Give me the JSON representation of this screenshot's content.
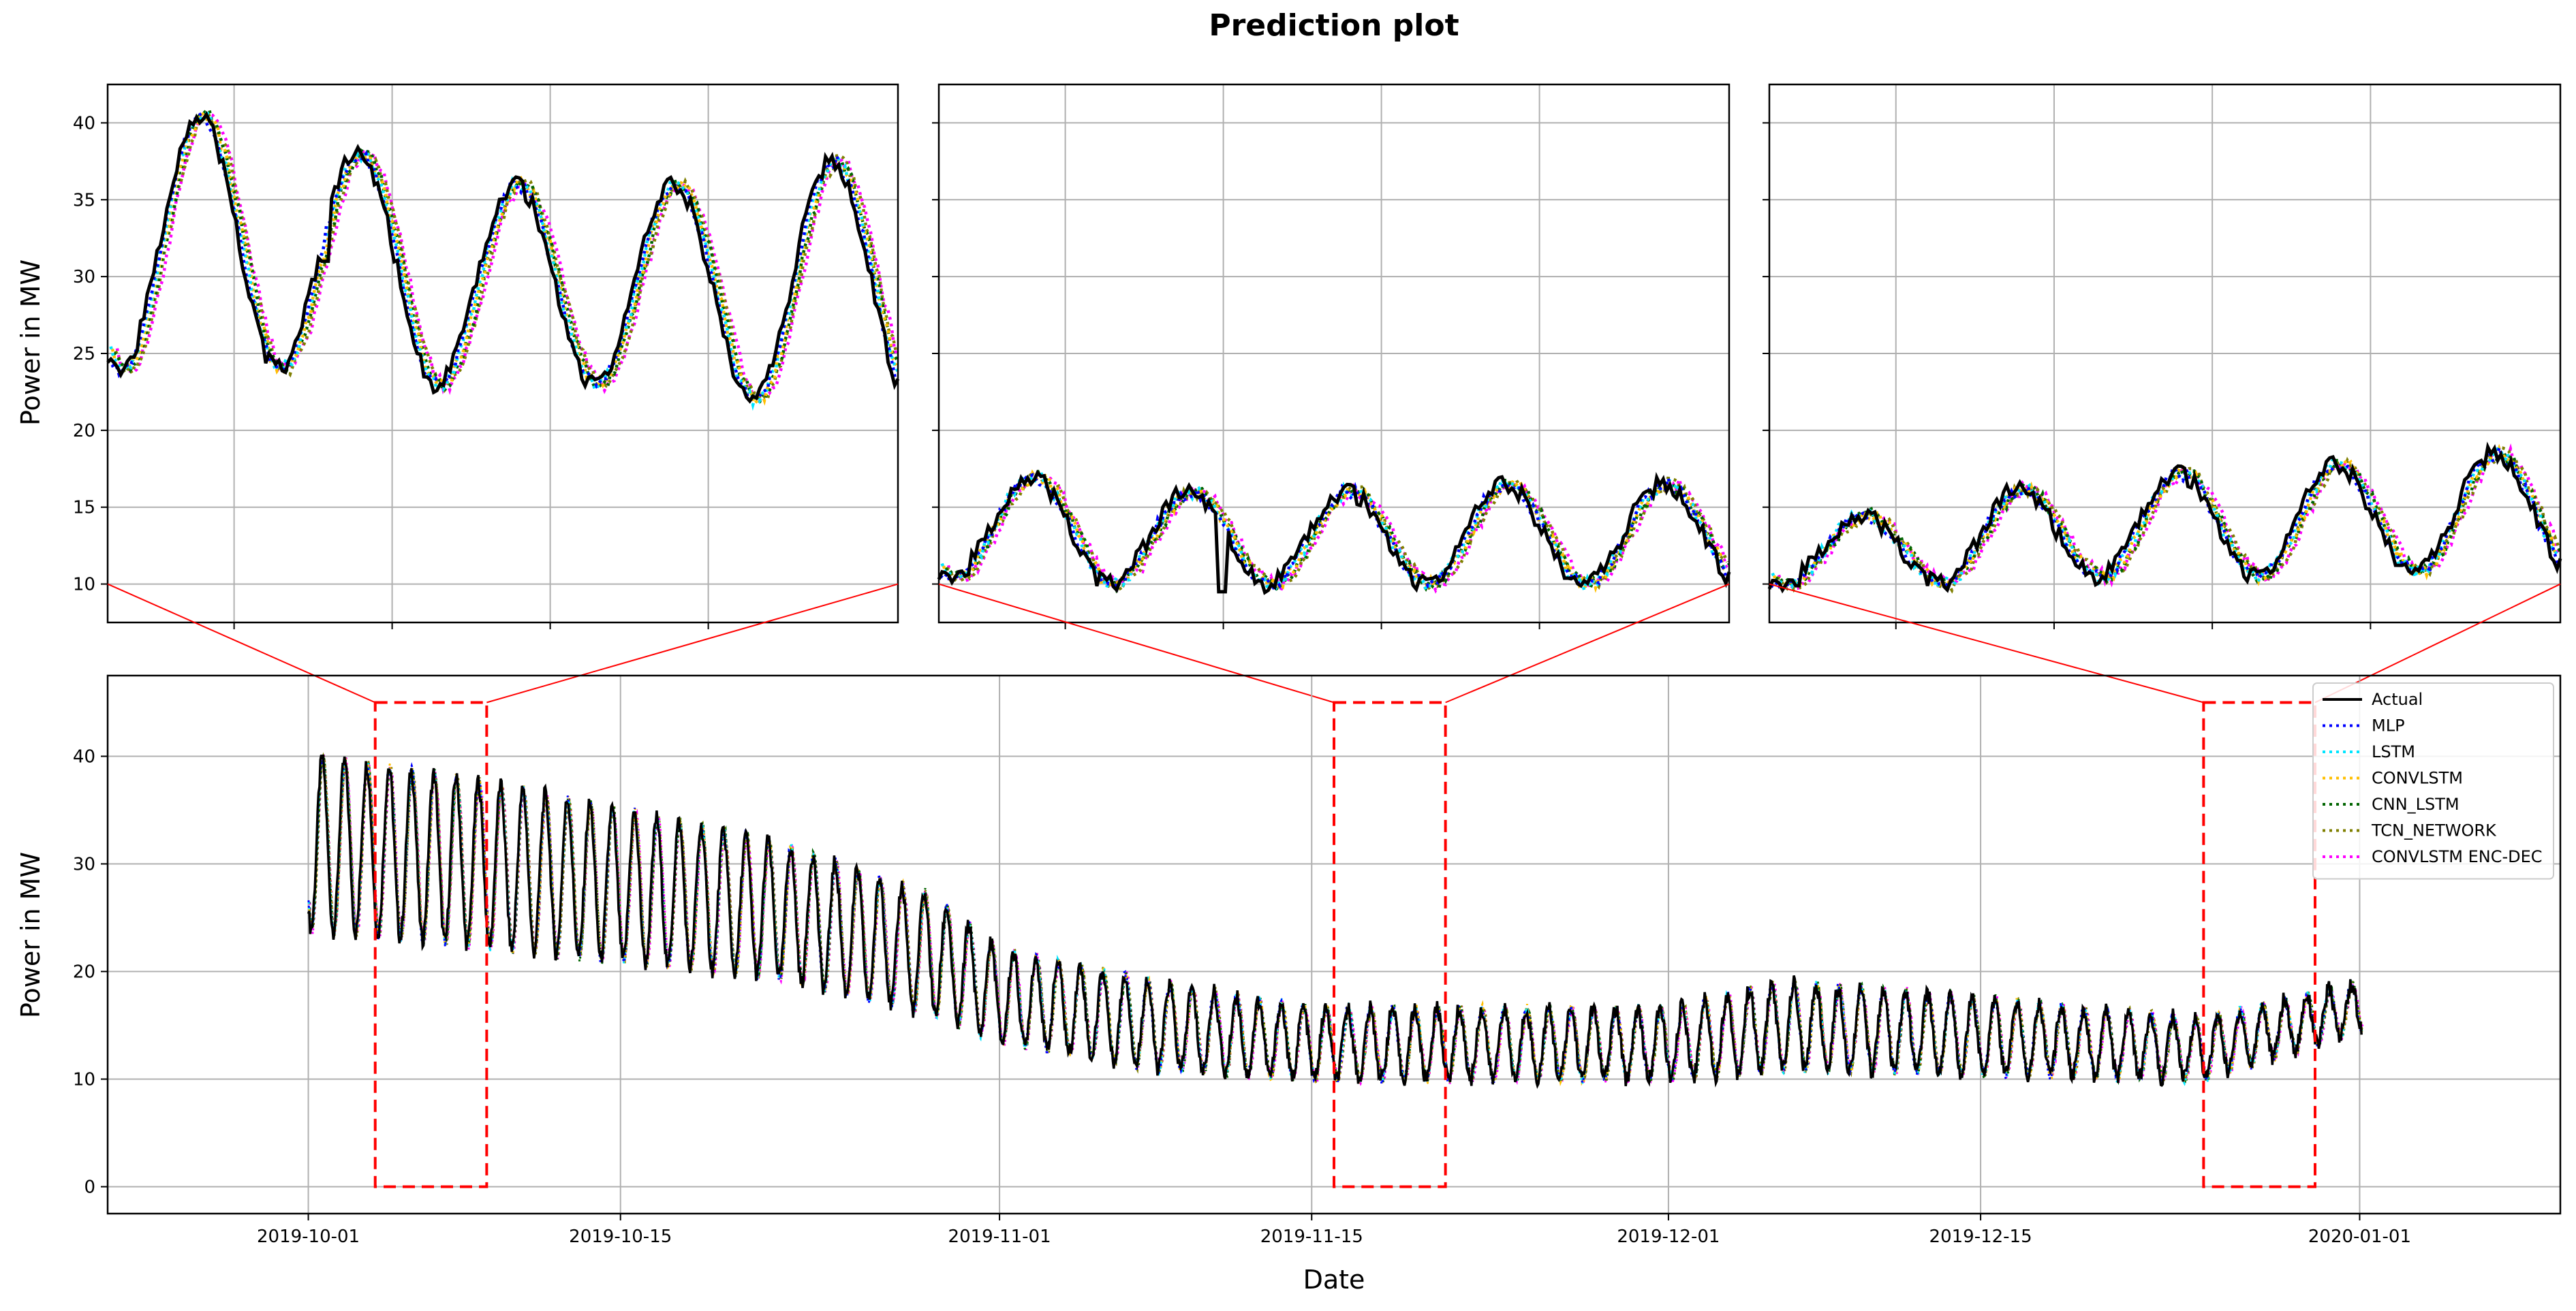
{
  "chart_data": {
    "type": "line",
    "title": "Prediction plot",
    "xlabel": "Date",
    "ylabel": "Power in MW",
    "main": {
      "xlim": [
        "2019-09-22",
        "2020-01-10"
      ],
      "ylim": [
        -2.5,
        47.5
      ],
      "yticks": [
        0,
        10,
        20,
        30,
        40
      ],
      "xticks": [
        "2019-10-01",
        "2019-10-15",
        "2019-11-01",
        "2019-11-15",
        "2019-12-01",
        "2019-12-15",
        "2020-01-01"
      ],
      "daily_peak_troughs": [
        {
          "date": "2019-10-01",
          "peak": 40,
          "trough": 24
        },
        {
          "date": "2019-10-08",
          "peak": 38,
          "trough": 22.5
        },
        {
          "date": "2019-10-15",
          "peak": 35,
          "trough": 21
        },
        {
          "date": "2019-10-22",
          "peak": 32,
          "trough": 19.5
        },
        {
          "date": "2019-10-29",
          "peak": 27,
          "trough": 16
        },
        {
          "date": "2019-11-01",
          "peak": 22,
          "trough": 13.5
        },
        {
          "date": "2019-11-08",
          "peak": 19,
          "trough": 11
        },
        {
          "date": "2019-11-15",
          "peak": 16.5,
          "trough": 10
        },
        {
          "date": "2019-12-01",
          "peak": 16.5,
          "trough": 10
        },
        {
          "date": "2019-12-06",
          "peak": 19,
          "trough": 11
        },
        {
          "date": "2019-12-15",
          "peak": 17.5,
          "trough": 10.5
        },
        {
          "date": "2019-12-25",
          "peak": 15.5,
          "trough": 10
        },
        {
          "date": "2020-01-01",
          "peak": 19,
          "trough": 14.5
        }
      ],
      "zoom_boxes": [
        {
          "start": "2019-10-04",
          "end": "2019-10-09",
          "ylim": [
            0,
            45
          ]
        },
        {
          "start": "2019-11-16",
          "end": "2019-11-21",
          "ylim": [
            0,
            45
          ]
        },
        {
          "start": "2019-12-25",
          "end": "2019-12-30",
          "ylim": [
            0,
            45
          ]
        }
      ]
    },
    "insets": [
      {
        "ylim": [
          7.5,
          42.5
        ],
        "yticks": [
          10,
          15,
          20,
          25,
          30,
          35,
          40
        ],
        "peaks": [
          40.5,
          38,
          36,
          36,
          37.5
        ],
        "troughs": [
          24,
          24,
          23,
          23,
          22
        ],
        "spikes": [
          [
            1.38,
            31
          ]
        ]
      },
      {
        "ylim": [
          7.5,
          42.5
        ],
        "yticks": [
          10,
          15,
          20,
          25,
          30,
          35,
          40
        ],
        "peaks": [
          17,
          16,
          16,
          16.5,
          16.5
        ],
        "troughs": [
          10.5,
          10,
          10,
          10,
          10
        ],
        "spikes": [
          [
            1.8,
            9.5
          ]
        ]
      },
      {
        "ylim": [
          7.5,
          42.5
        ],
        "yticks": [
          10,
          15,
          20,
          25,
          30,
          35,
          40
        ],
        "peaks": [
          14.5,
          16.2,
          17.2,
          17.8,
          18.5
        ],
        "troughs": [
          10,
          10,
          10.5,
          10.5,
          10.8
        ],
        "spikes": []
      }
    ],
    "series": [
      {
        "name": "Actual",
        "color": "#000000",
        "style": "solid"
      },
      {
        "name": "MLP",
        "color": "#0000ff",
        "style": "dotted"
      },
      {
        "name": "LSTM",
        "color": "#00e5ff",
        "style": "dotted"
      },
      {
        "name": "CONVLSTM",
        "color": "#ffbf00",
        "style": "dotted"
      },
      {
        "name": "CNN_LSTM",
        "color": "#006400",
        "style": "dotted"
      },
      {
        "name": "TCN_NETWORK",
        "color": "#7f7f00",
        "style": "dotted"
      },
      {
        "name": "CONVLSTM ENC-DEC",
        "color": "#ff00ff",
        "style": "dotted"
      }
    ],
    "grid": true,
    "legend_position": "upper-right",
    "zoom_color": "#ff0000"
  }
}
